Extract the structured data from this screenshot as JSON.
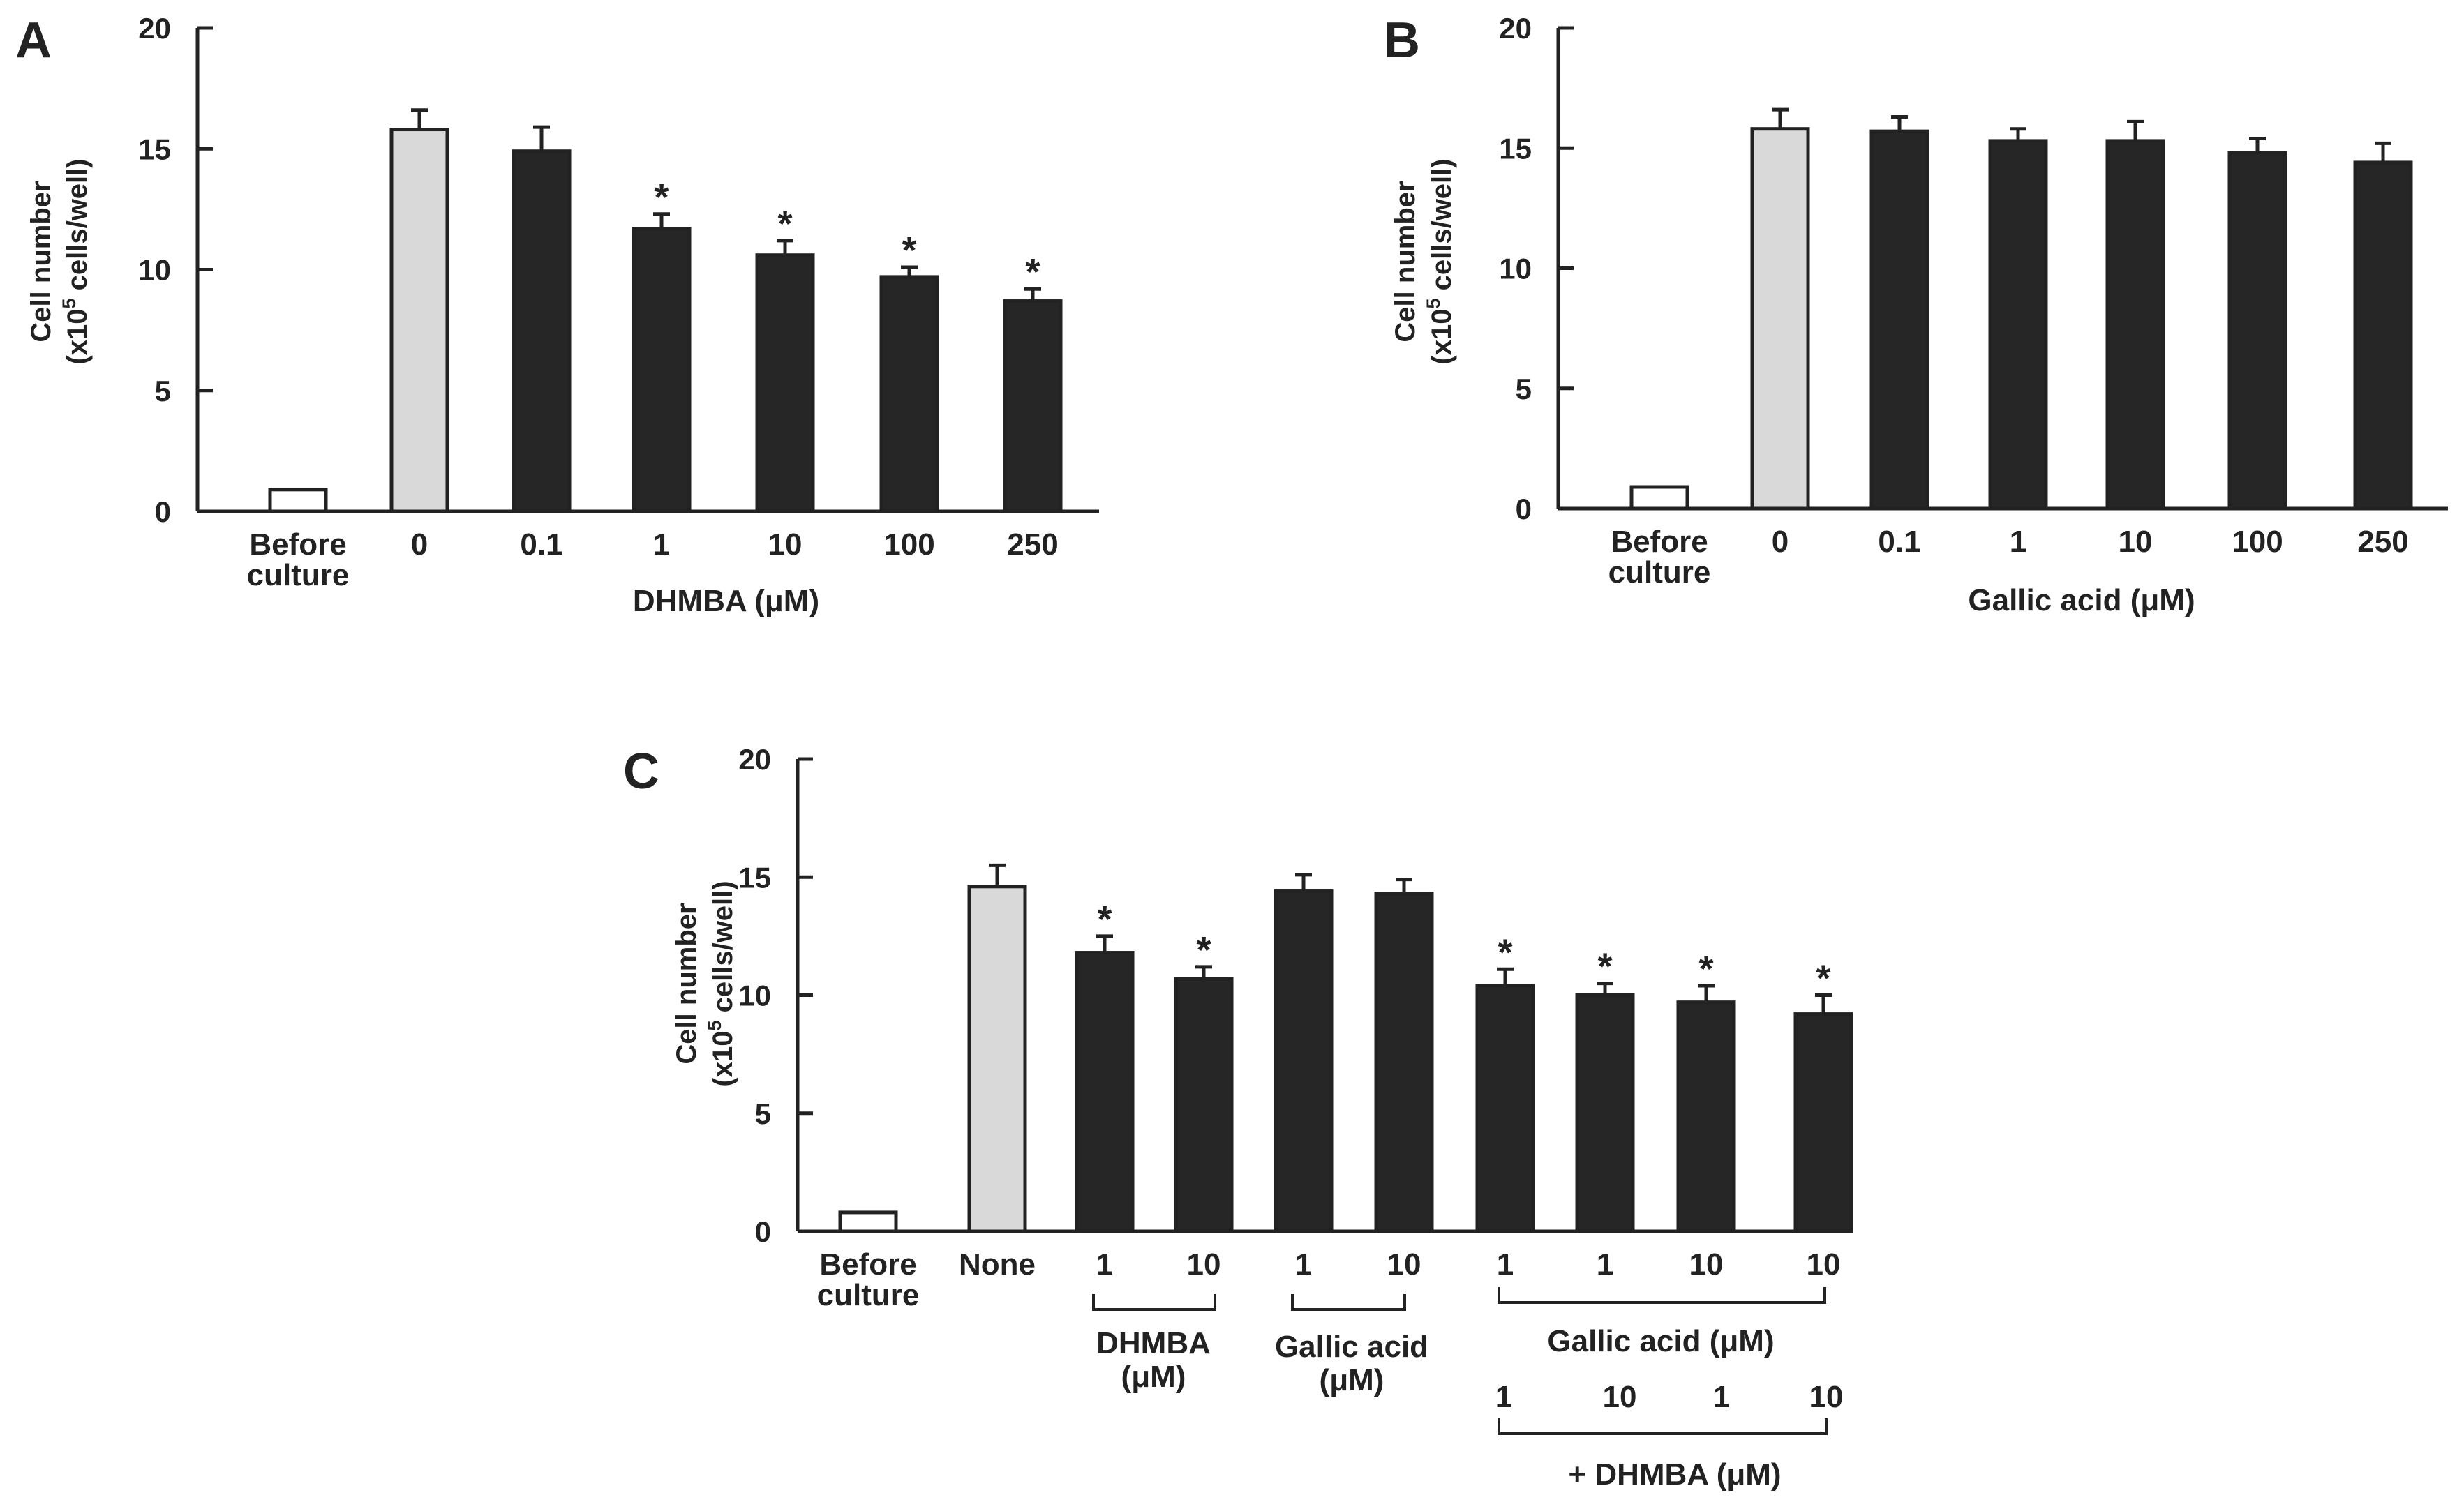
{
  "colors": {
    "ink": "#222222",
    "empty": "#ffffff",
    "control": "#d9d9d9",
    "treated": "#262626"
  },
  "y_axis_title": [
    "Cell number",
    "(x10",
    "5",
    " cells/well)"
  ],
  "significance_marker": "*",
  "chart_data": [
    {
      "panel": "A",
      "type": "bar",
      "ylim": [
        0,
        20
      ],
      "yticks": [
        "0",
        "5",
        "10",
        "15",
        "20"
      ],
      "xlabel": "DHMBA (μM)",
      "categories": [
        [
          "Before",
          "culture"
        ],
        [
          "0"
        ],
        [
          "0.1"
        ],
        [
          "1"
        ],
        [
          "10"
        ],
        [
          "100"
        ],
        [
          "250"
        ]
      ],
      "values": [
        0.9,
        15.8,
        14.9,
        11.7,
        10.6,
        9.7,
        8.7
      ],
      "errors": [
        0,
        0.8,
        1.0,
        0.6,
        0.6,
        0.4,
        0.5
      ],
      "fills": [
        "empty",
        "control",
        "treated",
        "treated",
        "treated",
        "treated",
        "treated"
      ],
      "significant": [
        false,
        false,
        false,
        true,
        true,
        true,
        true
      ]
    },
    {
      "panel": "B",
      "type": "bar",
      "ylim": [
        0,
        20
      ],
      "yticks": [
        "0",
        "5",
        "10",
        "15",
        "20"
      ],
      "xlabel": "Gallic acid (μM)",
      "categories": [
        [
          "Before",
          "culture"
        ],
        [
          "0"
        ],
        [
          "0.1"
        ],
        [
          "1"
        ],
        [
          "10"
        ],
        [
          "100"
        ],
        [
          "250"
        ]
      ],
      "values": [
        0.9,
        15.8,
        15.7,
        15.3,
        15.3,
        14.8,
        14.4
      ],
      "errors": [
        0,
        0.8,
        0.6,
        0.5,
        0.8,
        0.6,
        0.8
      ],
      "fills": [
        "empty",
        "control",
        "treated",
        "treated",
        "treated",
        "treated",
        "treated"
      ],
      "significant": [
        false,
        false,
        false,
        false,
        false,
        false,
        false
      ]
    },
    {
      "panel": "C",
      "type": "bar",
      "ylim": [
        0,
        20
      ],
      "yticks": [
        "0",
        "5",
        "10",
        "15",
        "20"
      ],
      "categories": [
        [
          "Before",
          "culture"
        ],
        [
          "None"
        ],
        [
          "1"
        ],
        [
          "10"
        ],
        [
          "1"
        ],
        [
          "10"
        ],
        [
          "1"
        ],
        [
          "1"
        ],
        [
          "10"
        ],
        [
          "10"
        ]
      ],
      "second_row_labels": [
        "1",
        "10",
        "1",
        "10"
      ],
      "values": [
        0.8,
        14.6,
        11.8,
        10.7,
        14.4,
        14.3,
        10.4,
        10.0,
        9.7,
        9.2
      ],
      "errors": [
        0,
        0.9,
        0.7,
        0.5,
        0.7,
        0.6,
        0.7,
        0.5,
        0.7,
        0.8
      ],
      "fills": [
        "empty",
        "control",
        "treated",
        "treated",
        "treated",
        "treated",
        "treated",
        "treated",
        "treated",
        "treated"
      ],
      "significant": [
        false,
        false,
        true,
        true,
        false,
        false,
        true,
        true,
        true,
        true
      ],
      "group_labels": [
        [
          "DHMBA",
          "(μM)"
        ],
        [
          "Gallic acid",
          "(μM)"
        ],
        [
          "Gallic acid (μM)"
        ],
        [
          "+ DHMBA (μM)"
        ]
      ]
    }
  ]
}
